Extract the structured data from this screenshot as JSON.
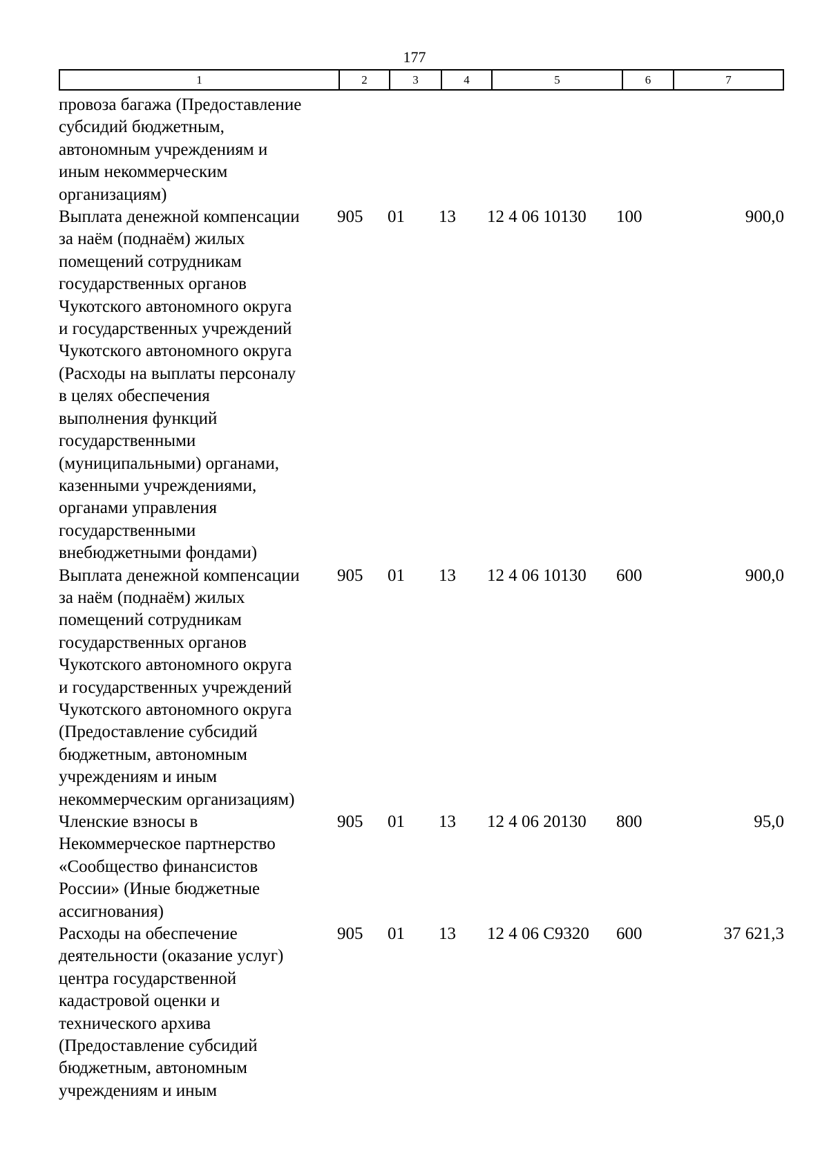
{
  "page_number": "177",
  "header": [
    "1",
    "2",
    "3",
    "4",
    "5",
    "6",
    "7"
  ],
  "rows": [
    {
      "lines": [
        "провоза багажа (Предоставление",
        "субсидий бюджетным,",
        "автономным учреждениям и",
        "иным некоммерческим",
        "организациям)"
      ],
      "c2": "",
      "c3": "",
      "c4": "",
      "c5": "",
      "c6": "",
      "c7": ""
    },
    {
      "lines": [
        "Выплата денежной компенсации",
        "за наём (поднаём) жилых",
        "помещений сотрудникам",
        "государственных органов",
        "Чукотского автономного округа",
        "и государственных учреждений",
        "Чукотского автономного округа",
        "(Расходы на выплаты персоналу",
        "в целях обеспечения",
        "выполнения функций",
        "государственными",
        "(муниципальными) органами,",
        "казенными учреждениями,",
        "органами управления",
        "государственными",
        "внебюджетными фондами)"
      ],
      "c2": "905",
      "c3": "01",
      "c4": "13",
      "c5": "12 4 06 10130",
      "c6": "100",
      "c7": "900,0"
    },
    {
      "lines": [
        "Выплата денежной компенсации",
        "за наём (поднаём) жилых",
        "помещений сотрудникам",
        "государственных органов",
        "Чукотского автономного округа",
        "и государственных учреждений",
        "Чукотского автономного округа",
        "(Предоставление субсидий",
        "бюджетным, автономным",
        "учреждениям и иным",
        "некоммерческим организациям)"
      ],
      "c2": "905",
      "c3": "01",
      "c4": "13",
      "c5": "12 4 06 10130",
      "c6": "600",
      "c7": "900,0"
    },
    {
      "lines": [
        "Членские взносы в",
        "Некоммерческое партнерство",
        "«Сообщество финансистов",
        "России» (Иные бюджетные",
        "ассигнования)"
      ],
      "c2": "905",
      "c3": "01",
      "c4": "13",
      "c5": "12 4 06 20130",
      "c6": "800",
      "c7": "95,0"
    },
    {
      "lines": [
        "Расходы на обеспечение",
        "деятельности (оказание услуг)",
        "центра государственной",
        "кадастровой оценки и",
        "технического архива",
        "(Предоставление субсидий",
        "бюджетным, автономным",
        "учреждениям и иным"
      ],
      "c2": "905",
      "c3": "01",
      "c4": "13",
      "c5": "12 4 06 С9320",
      "c6": "600",
      "c7": "37 621,3"
    }
  ]
}
